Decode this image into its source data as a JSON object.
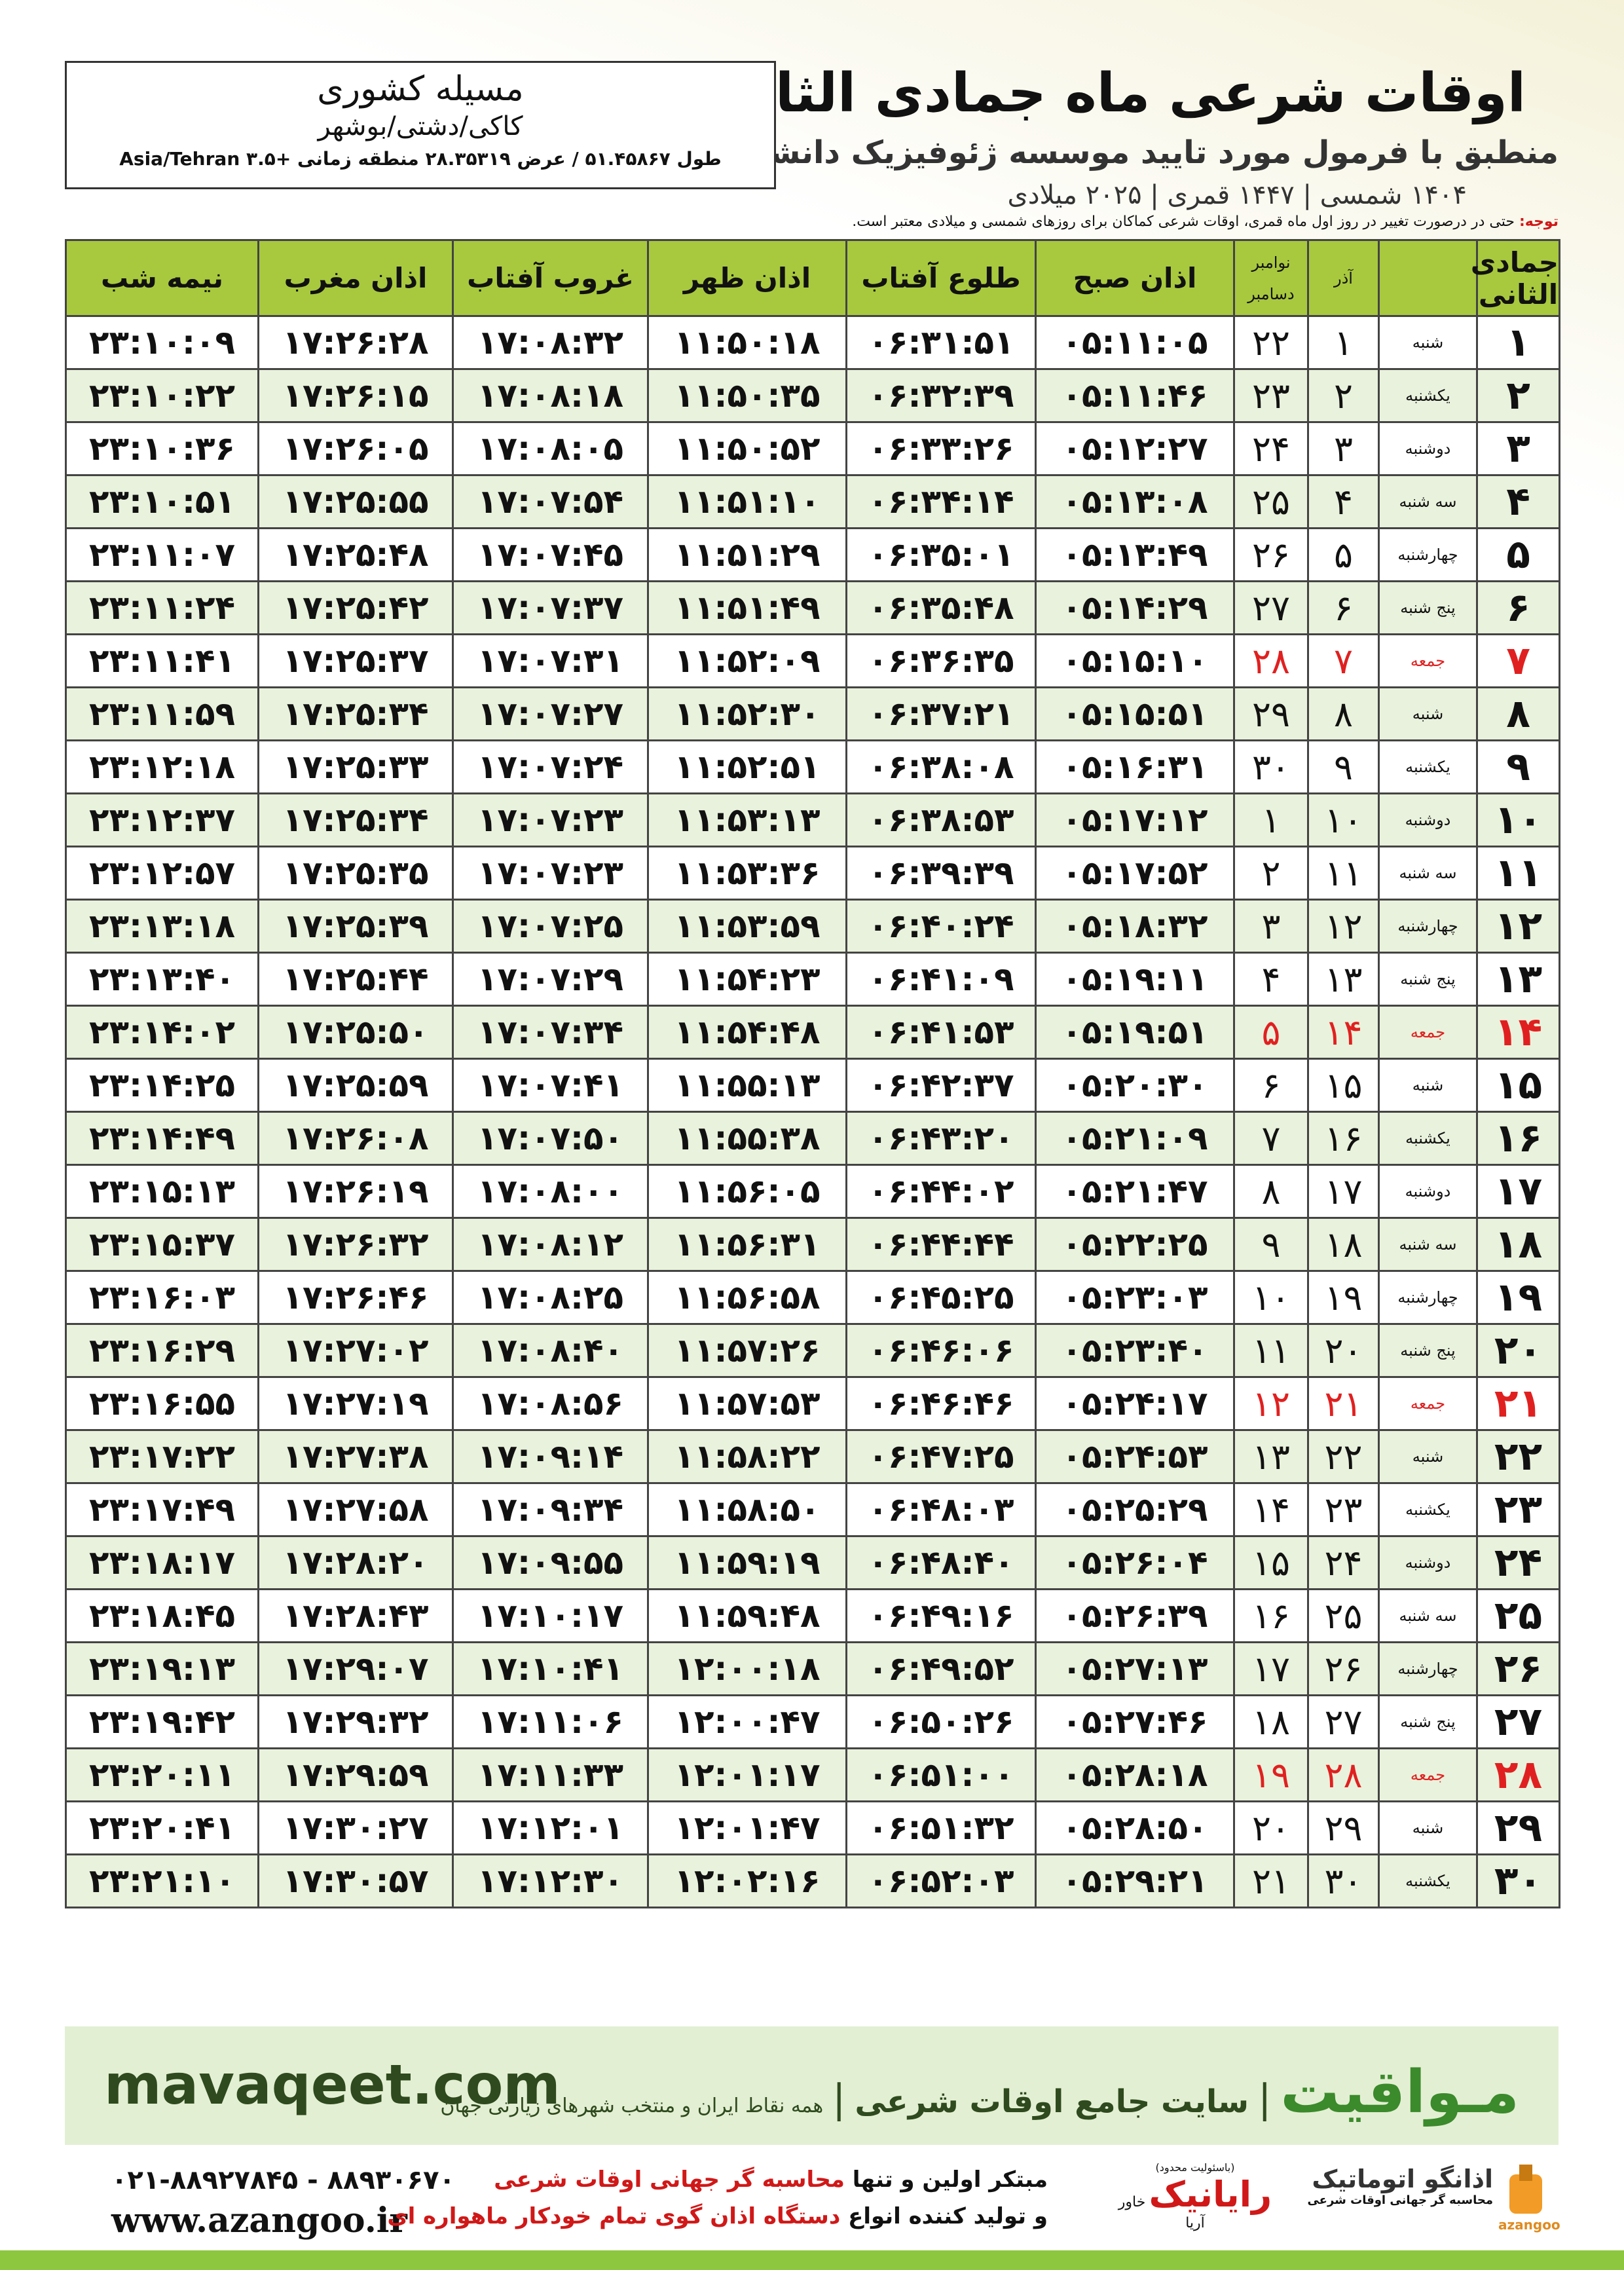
{
  "header": {
    "title": "اوقات شرعی ماه جمادی الثانی",
    "subtitle": "منطبق با فرمول مورد تایید موسسه ژئوفیزیک دانشگاه تهران",
    "years": "۱۴۰۴ شمسی | ۱۴۴۷ قمری | ۲۰۲۵ میلادی"
  },
  "location": {
    "name": "مسیله کشوری",
    "region": "کاکی/دشتی/بوشهر",
    "coords": "طول ۵۱.۴۵۸۶۷ / عرض ۲۸.۳۵۳۱۹ منطقه زمانی +۳.۵ Asia/Tehran"
  },
  "note": {
    "label": "توجه:",
    "text": "حتی در درصورت تغییر در روز اول ماه قمری، اوقات شرعی کماکان برای روزهای شمسی و میلادی معتبر است."
  },
  "table": {
    "columns": [
      "جمادی الثانی",
      "",
      "آذر",
      [
        "نوامبر",
        "دسامبر"
      ],
      "اذان صبح",
      "طلوع آفتاب",
      "اذان ظهر",
      "غروب آفتاب",
      "اذان مغرب",
      "نیمه شب"
    ],
    "rows": [
      [
        "۱",
        "شنبه",
        "۱",
        "۲۲",
        "۰۵:۱۱:۰۵",
        "۰۶:۳۱:۵۱",
        "۱۱:۵۰:۱۸",
        "۱۷:۰۸:۳۲",
        "۱۷:۲۶:۲۸",
        "۲۳:۱۰:۰۹"
      ],
      [
        "۲",
        "یکشنبه",
        "۲",
        "۲۳",
        "۰۵:۱۱:۴۶",
        "۰۶:۳۲:۳۹",
        "۱۱:۵۰:۳۵",
        "۱۷:۰۸:۱۸",
        "۱۷:۲۶:۱۵",
        "۲۳:۱۰:۲۲"
      ],
      [
        "۳",
        "دوشنبه",
        "۳",
        "۲۴",
        "۰۵:۱۲:۲۷",
        "۰۶:۳۳:۲۶",
        "۱۱:۵۰:۵۲",
        "۱۷:۰۸:۰۵",
        "۱۷:۲۶:۰۵",
        "۲۳:۱۰:۳۶"
      ],
      [
        "۴",
        "سه شنبه",
        "۴",
        "۲۵",
        "۰۵:۱۳:۰۸",
        "۰۶:۳۴:۱۴",
        "۱۱:۵۱:۱۰",
        "۱۷:۰۷:۵۴",
        "۱۷:۲۵:۵۵",
        "۲۳:۱۰:۵۱"
      ],
      [
        "۵",
        "چهارشنبه",
        "۵",
        "۲۶",
        "۰۵:۱۳:۴۹",
        "۰۶:۳۵:۰۱",
        "۱۱:۵۱:۲۹",
        "۱۷:۰۷:۴۵",
        "۱۷:۲۵:۴۸",
        "۲۳:۱۱:۰۷"
      ],
      [
        "۶",
        "پنج شنبه",
        "۶",
        "۲۷",
        "۰۵:۱۴:۲۹",
        "۰۶:۳۵:۴۸",
        "۱۱:۵۱:۴۹",
        "۱۷:۰۷:۳۷",
        "۱۷:۲۵:۴۲",
        "۲۳:۱۱:۲۴"
      ],
      [
        "۷",
        "جمعه",
        "۷",
        "۲۸",
        "۰۵:۱۵:۱۰",
        "۰۶:۳۶:۳۵",
        "۱۱:۵۲:۰۹",
        "۱۷:۰۷:۳۱",
        "۱۷:۲۵:۳۷",
        "۲۳:۱۱:۴۱"
      ],
      [
        "۸",
        "شنبه",
        "۸",
        "۲۹",
        "۰۵:۱۵:۵۱",
        "۰۶:۳۷:۲۱",
        "۱۱:۵۲:۳۰",
        "۱۷:۰۷:۲۷",
        "۱۷:۲۵:۳۴",
        "۲۳:۱۱:۵۹"
      ],
      [
        "۹",
        "یکشنبه",
        "۹",
        "۳۰",
        "۰۵:۱۶:۳۱",
        "۰۶:۳۸:۰۸",
        "۱۱:۵۲:۵۱",
        "۱۷:۰۷:۲۴",
        "۱۷:۲۵:۳۳",
        "۲۳:۱۲:۱۸"
      ],
      [
        "۱۰",
        "دوشنبه",
        "۱۰",
        "۱",
        "۰۵:۱۷:۱۲",
        "۰۶:۳۸:۵۳",
        "۱۱:۵۳:۱۳",
        "۱۷:۰۷:۲۳",
        "۱۷:۲۵:۳۴",
        "۲۳:۱۲:۳۷"
      ],
      [
        "۱۱",
        "سه شنبه",
        "۱۱",
        "۲",
        "۰۵:۱۷:۵۲",
        "۰۶:۳۹:۳۹",
        "۱۱:۵۳:۳۶",
        "۱۷:۰۷:۲۳",
        "۱۷:۲۵:۳۵",
        "۲۳:۱۲:۵۷"
      ],
      [
        "۱۲",
        "چهارشنبه",
        "۱۲",
        "۳",
        "۰۵:۱۸:۳۲",
        "۰۶:۴۰:۲۴",
        "۱۱:۵۳:۵۹",
        "۱۷:۰۷:۲۵",
        "۱۷:۲۵:۳۹",
        "۲۳:۱۳:۱۸"
      ],
      [
        "۱۳",
        "پنج شنبه",
        "۱۳",
        "۴",
        "۰۵:۱۹:۱۱",
        "۰۶:۴۱:۰۹",
        "۱۱:۵۴:۲۳",
        "۱۷:۰۷:۲۹",
        "۱۷:۲۵:۴۴",
        "۲۳:۱۳:۴۰"
      ],
      [
        "۱۴",
        "جمعه",
        "۱۴",
        "۵",
        "۰۵:۱۹:۵۱",
        "۰۶:۴۱:۵۳",
        "۱۱:۵۴:۴۸",
        "۱۷:۰۷:۳۴",
        "۱۷:۲۵:۵۰",
        "۲۳:۱۴:۰۲"
      ],
      [
        "۱۵",
        "شنبه",
        "۱۵",
        "۶",
        "۰۵:۲۰:۳۰",
        "۰۶:۴۲:۳۷",
        "۱۱:۵۵:۱۳",
        "۱۷:۰۷:۴۱",
        "۱۷:۲۵:۵۹",
        "۲۳:۱۴:۲۵"
      ],
      [
        "۱۶",
        "یکشنبه",
        "۱۶",
        "۷",
        "۰۵:۲۱:۰۹",
        "۰۶:۴۳:۲۰",
        "۱۱:۵۵:۳۸",
        "۱۷:۰۷:۵۰",
        "۱۷:۲۶:۰۸",
        "۲۳:۱۴:۴۹"
      ],
      [
        "۱۷",
        "دوشنبه",
        "۱۷",
        "۸",
        "۰۵:۲۱:۴۷",
        "۰۶:۴۴:۰۲",
        "۱۱:۵۶:۰۵",
        "۱۷:۰۸:۰۰",
        "۱۷:۲۶:۱۹",
        "۲۳:۱۵:۱۳"
      ],
      [
        "۱۸",
        "سه شنبه",
        "۱۸",
        "۹",
        "۰۵:۲۲:۲۵",
        "۰۶:۴۴:۴۴",
        "۱۱:۵۶:۳۱",
        "۱۷:۰۸:۱۲",
        "۱۷:۲۶:۳۲",
        "۲۳:۱۵:۳۷"
      ],
      [
        "۱۹",
        "چهارشنبه",
        "۱۹",
        "۱۰",
        "۰۵:۲۳:۰۳",
        "۰۶:۴۵:۲۵",
        "۱۱:۵۶:۵۸",
        "۱۷:۰۸:۲۵",
        "۱۷:۲۶:۴۶",
        "۲۳:۱۶:۰۳"
      ],
      [
        "۲۰",
        "پنج شنبه",
        "۲۰",
        "۱۱",
        "۰۵:۲۳:۴۰",
        "۰۶:۴۶:۰۶",
        "۱۱:۵۷:۲۶",
        "۱۷:۰۸:۴۰",
        "۱۷:۲۷:۰۲",
        "۲۳:۱۶:۲۹"
      ],
      [
        "۲۱",
        "جمعه",
        "۲۱",
        "۱۲",
        "۰۵:۲۴:۱۷",
        "۰۶:۴۶:۴۶",
        "۱۱:۵۷:۵۳",
        "۱۷:۰۸:۵۶",
        "۱۷:۲۷:۱۹",
        "۲۳:۱۶:۵۵"
      ],
      [
        "۲۲",
        "شنبه",
        "۲۲",
        "۱۳",
        "۰۵:۲۴:۵۳",
        "۰۶:۴۷:۲۵",
        "۱۱:۵۸:۲۲",
        "۱۷:۰۹:۱۴",
        "۱۷:۲۷:۳۸",
        "۲۳:۱۷:۲۲"
      ],
      [
        "۲۳",
        "یکشنبه",
        "۲۳",
        "۱۴",
        "۰۵:۲۵:۲۹",
        "۰۶:۴۸:۰۳",
        "۱۱:۵۸:۵۰",
        "۱۷:۰۹:۳۴",
        "۱۷:۲۷:۵۸",
        "۲۳:۱۷:۴۹"
      ],
      [
        "۲۴",
        "دوشنبه",
        "۲۴",
        "۱۵",
        "۰۵:۲۶:۰۴",
        "۰۶:۴۸:۴۰",
        "۱۱:۵۹:۱۹",
        "۱۷:۰۹:۵۵",
        "۱۷:۲۸:۲۰",
        "۲۳:۱۸:۱۷"
      ],
      [
        "۲۵",
        "سه شنبه",
        "۲۵",
        "۱۶",
        "۰۵:۲۶:۳۹",
        "۰۶:۴۹:۱۶",
        "۱۱:۵۹:۴۸",
        "۱۷:۱۰:۱۷",
        "۱۷:۲۸:۴۳",
        "۲۳:۱۸:۴۵"
      ],
      [
        "۲۶",
        "چهارشنبه",
        "۲۶",
        "۱۷",
        "۰۵:۲۷:۱۳",
        "۰۶:۴۹:۵۲",
        "۱۲:۰۰:۱۸",
        "۱۷:۱۰:۴۱",
        "۱۷:۲۹:۰۷",
        "۲۳:۱۹:۱۳"
      ],
      [
        "۲۷",
        "پنج شنبه",
        "۲۷",
        "۱۸",
        "۰۵:۲۷:۴۶",
        "۰۶:۵۰:۲۶",
        "۱۲:۰۰:۴۷",
        "۱۷:۱۱:۰۶",
        "۱۷:۲۹:۳۲",
        "۲۳:۱۹:۴۲"
      ],
      [
        "۲۸",
        "جمعه",
        "۲۸",
        "۱۹",
        "۰۵:۲۸:۱۸",
        "۰۶:۵۱:۰۰",
        "۱۲:۰۱:۱۷",
        "۱۷:۱۱:۳۳",
        "۱۷:۲۹:۵۹",
        "۲۳:۲۰:۱۱"
      ],
      [
        "۲۹",
        "شنبه",
        "۲۹",
        "۲۰",
        "۰۵:۲۸:۵۰",
        "۰۶:۵۱:۳۲",
        "۱۲:۰۱:۴۷",
        "۱۷:۱۲:۰۱",
        "۱۷:۳۰:۲۷",
        "۲۳:۲۰:۴۱"
      ],
      [
        "۳۰",
        "یکشنبه",
        "۳۰",
        "۲۱",
        "۰۵:۲۹:۲۱",
        "۰۶:۵۲:۰۳",
        "۱۲:۰۲:۱۶",
        "۱۷:۱۲:۳۰",
        "۱۷:۳۰:۵۷",
        "۲۳:۲۱:۱۰"
      ]
    ]
  },
  "banner": {
    "site": "mavaqeet.com",
    "brand": "مـواقیت",
    "tagline": "سایت جامع اوقات شرعی",
    "coverage": "همه نقاط ایران و منتخب شهرهای زیارتی جهان"
  },
  "footer": {
    "phone": "۰۲۱-۸۸۹۲۷۸۴۵ - ۸۸۹۳۰۶۷۰",
    "web": "www.azangoo.ir",
    "line1": [
      "مبتکر اولین و تنها ",
      "محاسبه گر جهانی اوقات شرعی"
    ],
    "line2": [
      "و تولید کننده انواع ",
      "دستگاه اذان گوی تمام خودکار ماهواره ای"
    ],
    "logo1": {
      "name": "رایانیک",
      "sub": "خاور آریا",
      "note": "(باسئولیت محدود)"
    },
    "logo2": {
      "name": "اذانگو اتوماتیک",
      "sub": "محاسبه گر جهانی اوقات شرعی",
      "en": "azangoo"
    }
  }
}
